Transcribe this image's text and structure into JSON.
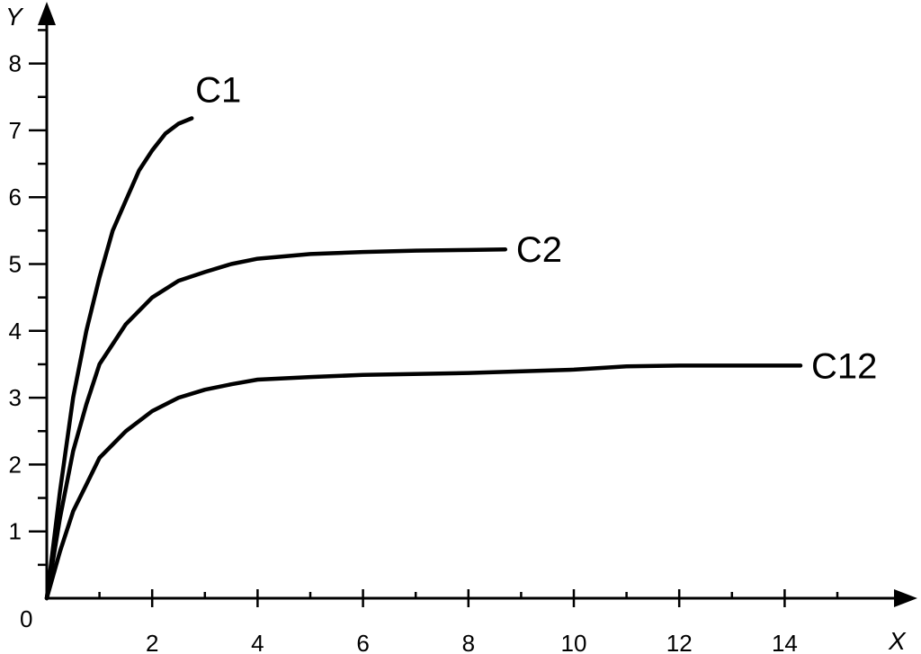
{
  "chart_data": {
    "type": "line",
    "title": "",
    "xlabel": "X",
    "ylabel": "Y",
    "origin_label": "0",
    "xlim": [
      0,
      16.5
    ],
    "ylim": [
      0,
      8.7
    ],
    "x_ticks": [
      2,
      4,
      6,
      8,
      10,
      12,
      14
    ],
    "x_tick_labels": [
      "2",
      "4",
      "6",
      "8",
      "10",
      "12",
      "14"
    ],
    "x_minor_step": 1,
    "y_ticks": [
      1,
      2,
      3,
      4,
      5,
      6,
      7,
      8
    ],
    "y_tick_labels": [
      "1",
      "2",
      "3",
      "4",
      "5",
      "6",
      "7",
      "8"
    ],
    "y_minor_step": 0.5,
    "grid": false,
    "legend": "none",
    "series": [
      {
        "name": "C1",
        "x": [
          0,
          0.25,
          0.5,
          0.75,
          1.0,
          1.25,
          1.5,
          1.75,
          2.0,
          2.25,
          2.5,
          2.75
        ],
        "y": [
          0,
          1.6,
          3.0,
          4.0,
          4.8,
          5.5,
          5.95,
          6.4,
          6.7,
          6.95,
          7.1,
          7.18
        ]
      },
      {
        "name": "C2",
        "x": [
          0,
          0.25,
          0.5,
          0.75,
          1.0,
          1.5,
          2.0,
          2.5,
          3.0,
          3.5,
          4.0,
          5.0,
          6.0,
          7.0,
          8.0,
          8.7
        ],
        "y": [
          0,
          1.2,
          2.2,
          2.9,
          3.5,
          4.1,
          4.5,
          4.75,
          4.88,
          5.0,
          5.08,
          5.15,
          5.18,
          5.2,
          5.21,
          5.22
        ]
      },
      {
        "name": "C12",
        "x": [
          0,
          0.25,
          0.5,
          0.75,
          1.0,
          1.5,
          2.0,
          2.5,
          3.0,
          3.5,
          4.0,
          5.0,
          6.0,
          8.0,
          10.0,
          11.0,
          12.0,
          14.3
        ],
        "y": [
          0,
          0.7,
          1.3,
          1.7,
          2.1,
          2.5,
          2.8,
          3.0,
          3.12,
          3.2,
          3.27,
          3.31,
          3.34,
          3.37,
          3.42,
          3.47,
          3.48,
          3.48
        ]
      }
    ]
  }
}
